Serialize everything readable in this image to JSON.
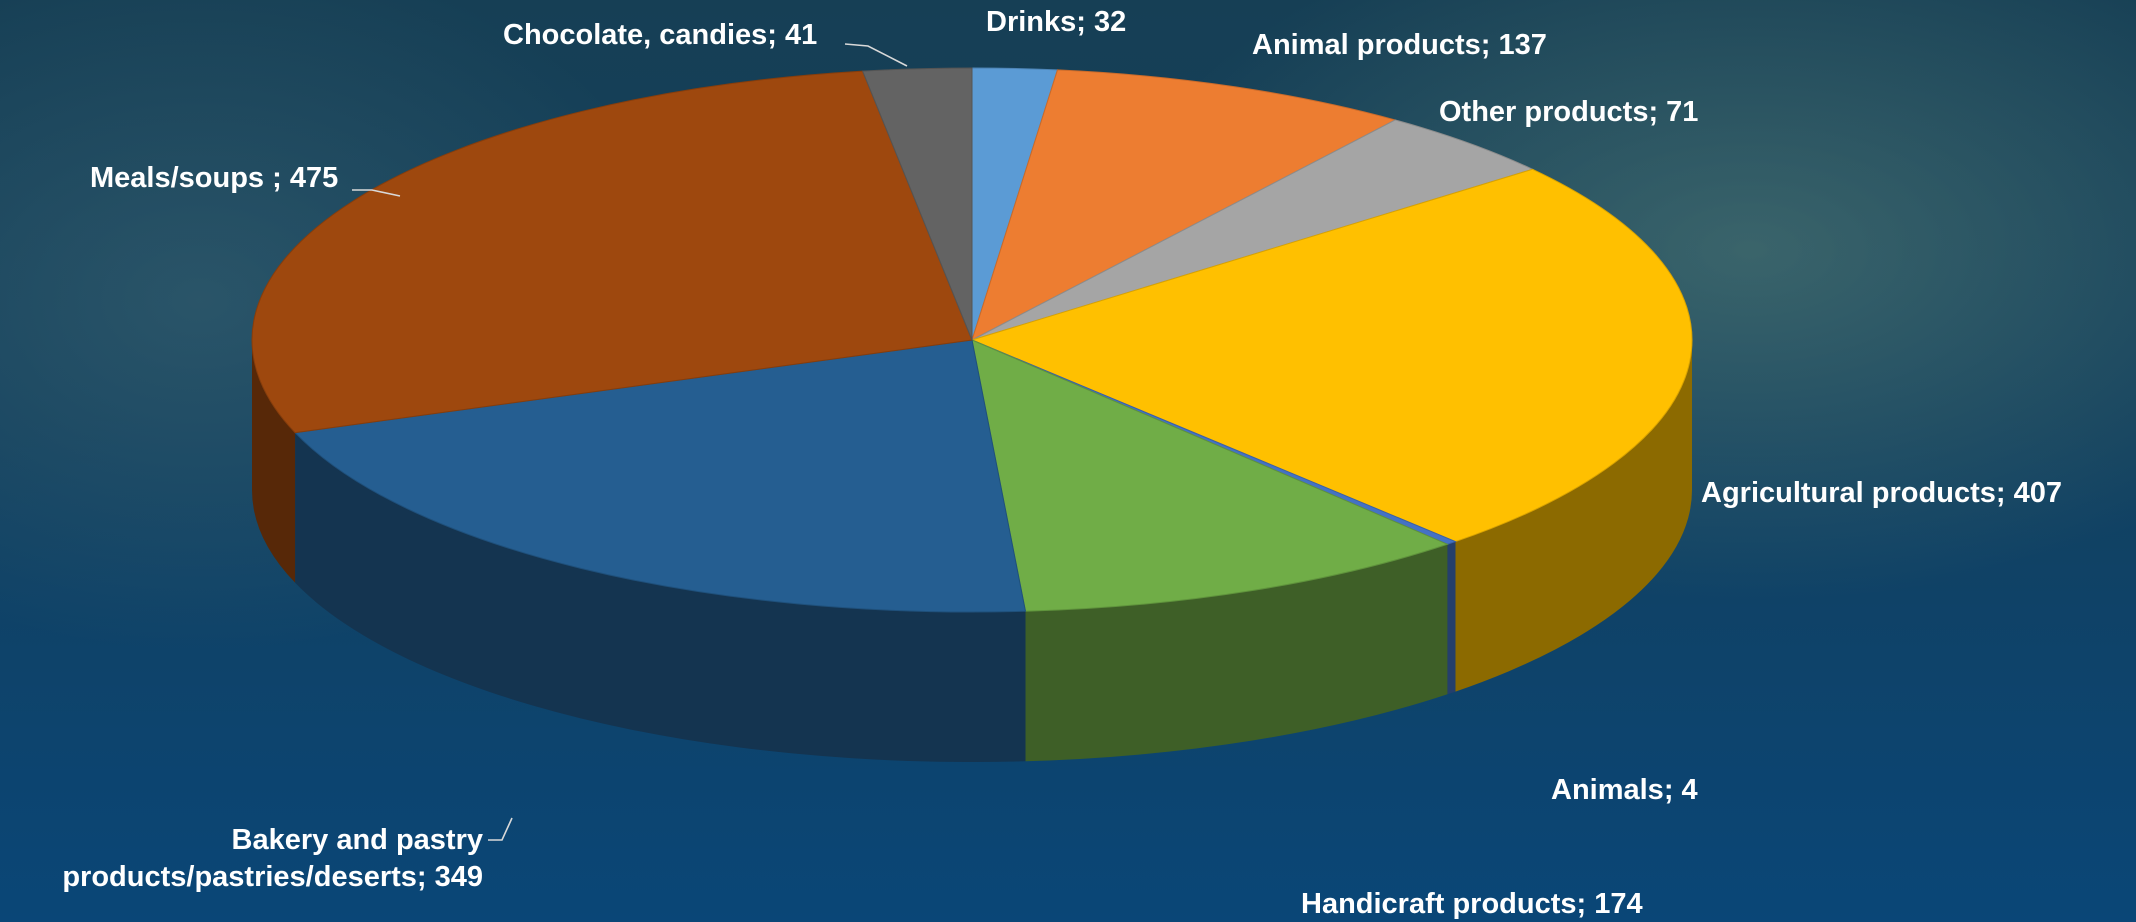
{
  "chart_data": {
    "type": "pie",
    "style": "3d",
    "title": "",
    "legend": "none",
    "slices": [
      {
        "category": "Drinks",
        "value": 32,
        "label": "Drinks; 32",
        "color": "#5b9bd5"
      },
      {
        "category": "Animal products",
        "value": 137,
        "label": "Animal products; 137",
        "color": "#ed7d31"
      },
      {
        "category": "Other products",
        "value": 71,
        "label": "Other products; 71",
        "color": "#a5a5a5"
      },
      {
        "category": "Agricultural products",
        "value": 407,
        "label": "Agricultural products; 407",
        "color": "#ffc000"
      },
      {
        "category": "Animals",
        "value": 4,
        "label": "Animals; 4",
        "color": "#4472c4"
      },
      {
        "category": "Handicraft products",
        "value": 174,
        "label": "Handicraft products; 174",
        "color": "#70ad47"
      },
      {
        "category": "Bakery and pastry products/pastries/deserts",
        "value": 349,
        "label_lines": [
          "Bakery and pastry",
          "products/pastries/deserts; 349"
        ],
        "color": "#255e91"
      },
      {
        "category": "Meals/soups",
        "value": 475,
        "label": "Meals/soups ; 475",
        "color": "#9e480e"
      },
      {
        "category": "Chocolate, candies",
        "value": 41,
        "label": "Chocolate, candies; 41",
        "color": "#636363"
      }
    ]
  }
}
